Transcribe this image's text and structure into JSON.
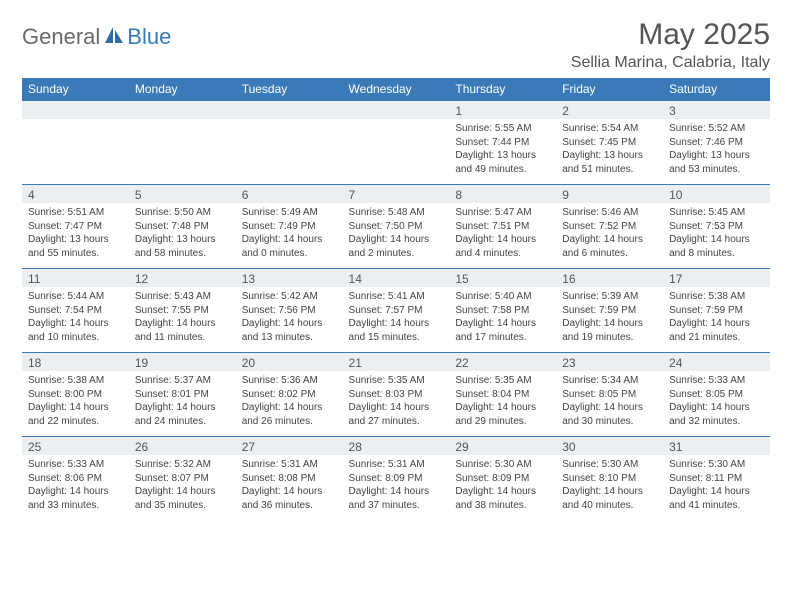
{
  "logo": {
    "part1": "General",
    "part2": "Blue"
  },
  "title": "May 2025",
  "location": "Sellia Marina, Calabria, Italy",
  "colors": {
    "header_bg": "#3a7ab8",
    "header_text": "#ffffff",
    "daynum_bg": "#eceff2",
    "border": "#3a7ab8",
    "body_text": "#444444",
    "title_text": "#555555"
  },
  "weekdays": [
    "Sunday",
    "Monday",
    "Tuesday",
    "Wednesday",
    "Thursday",
    "Friday",
    "Saturday"
  ],
  "weeks": [
    [
      {
        "day": "",
        "sunrise": "",
        "sunset": "",
        "daylight": ""
      },
      {
        "day": "",
        "sunrise": "",
        "sunset": "",
        "daylight": ""
      },
      {
        "day": "",
        "sunrise": "",
        "sunset": "",
        "daylight": ""
      },
      {
        "day": "",
        "sunrise": "",
        "sunset": "",
        "daylight": ""
      },
      {
        "day": "1",
        "sunrise": "Sunrise: 5:55 AM",
        "sunset": "Sunset: 7:44 PM",
        "daylight": "Daylight: 13 hours and 49 minutes."
      },
      {
        "day": "2",
        "sunrise": "Sunrise: 5:54 AM",
        "sunset": "Sunset: 7:45 PM",
        "daylight": "Daylight: 13 hours and 51 minutes."
      },
      {
        "day": "3",
        "sunrise": "Sunrise: 5:52 AM",
        "sunset": "Sunset: 7:46 PM",
        "daylight": "Daylight: 13 hours and 53 minutes."
      }
    ],
    [
      {
        "day": "4",
        "sunrise": "Sunrise: 5:51 AM",
        "sunset": "Sunset: 7:47 PM",
        "daylight": "Daylight: 13 hours and 55 minutes."
      },
      {
        "day": "5",
        "sunrise": "Sunrise: 5:50 AM",
        "sunset": "Sunset: 7:48 PM",
        "daylight": "Daylight: 13 hours and 58 minutes."
      },
      {
        "day": "6",
        "sunrise": "Sunrise: 5:49 AM",
        "sunset": "Sunset: 7:49 PM",
        "daylight": "Daylight: 14 hours and 0 minutes."
      },
      {
        "day": "7",
        "sunrise": "Sunrise: 5:48 AM",
        "sunset": "Sunset: 7:50 PM",
        "daylight": "Daylight: 14 hours and 2 minutes."
      },
      {
        "day": "8",
        "sunrise": "Sunrise: 5:47 AM",
        "sunset": "Sunset: 7:51 PM",
        "daylight": "Daylight: 14 hours and 4 minutes."
      },
      {
        "day": "9",
        "sunrise": "Sunrise: 5:46 AM",
        "sunset": "Sunset: 7:52 PM",
        "daylight": "Daylight: 14 hours and 6 minutes."
      },
      {
        "day": "10",
        "sunrise": "Sunrise: 5:45 AM",
        "sunset": "Sunset: 7:53 PM",
        "daylight": "Daylight: 14 hours and 8 minutes."
      }
    ],
    [
      {
        "day": "11",
        "sunrise": "Sunrise: 5:44 AM",
        "sunset": "Sunset: 7:54 PM",
        "daylight": "Daylight: 14 hours and 10 minutes."
      },
      {
        "day": "12",
        "sunrise": "Sunrise: 5:43 AM",
        "sunset": "Sunset: 7:55 PM",
        "daylight": "Daylight: 14 hours and 11 minutes."
      },
      {
        "day": "13",
        "sunrise": "Sunrise: 5:42 AM",
        "sunset": "Sunset: 7:56 PM",
        "daylight": "Daylight: 14 hours and 13 minutes."
      },
      {
        "day": "14",
        "sunrise": "Sunrise: 5:41 AM",
        "sunset": "Sunset: 7:57 PM",
        "daylight": "Daylight: 14 hours and 15 minutes."
      },
      {
        "day": "15",
        "sunrise": "Sunrise: 5:40 AM",
        "sunset": "Sunset: 7:58 PM",
        "daylight": "Daylight: 14 hours and 17 minutes."
      },
      {
        "day": "16",
        "sunrise": "Sunrise: 5:39 AM",
        "sunset": "Sunset: 7:59 PM",
        "daylight": "Daylight: 14 hours and 19 minutes."
      },
      {
        "day": "17",
        "sunrise": "Sunrise: 5:38 AM",
        "sunset": "Sunset: 7:59 PM",
        "daylight": "Daylight: 14 hours and 21 minutes."
      }
    ],
    [
      {
        "day": "18",
        "sunrise": "Sunrise: 5:38 AM",
        "sunset": "Sunset: 8:00 PM",
        "daylight": "Daylight: 14 hours and 22 minutes."
      },
      {
        "day": "19",
        "sunrise": "Sunrise: 5:37 AM",
        "sunset": "Sunset: 8:01 PM",
        "daylight": "Daylight: 14 hours and 24 minutes."
      },
      {
        "day": "20",
        "sunrise": "Sunrise: 5:36 AM",
        "sunset": "Sunset: 8:02 PM",
        "daylight": "Daylight: 14 hours and 26 minutes."
      },
      {
        "day": "21",
        "sunrise": "Sunrise: 5:35 AM",
        "sunset": "Sunset: 8:03 PM",
        "daylight": "Daylight: 14 hours and 27 minutes."
      },
      {
        "day": "22",
        "sunrise": "Sunrise: 5:35 AM",
        "sunset": "Sunset: 8:04 PM",
        "daylight": "Daylight: 14 hours and 29 minutes."
      },
      {
        "day": "23",
        "sunrise": "Sunrise: 5:34 AM",
        "sunset": "Sunset: 8:05 PM",
        "daylight": "Daylight: 14 hours and 30 minutes."
      },
      {
        "day": "24",
        "sunrise": "Sunrise: 5:33 AM",
        "sunset": "Sunset: 8:05 PM",
        "daylight": "Daylight: 14 hours and 32 minutes."
      }
    ],
    [
      {
        "day": "25",
        "sunrise": "Sunrise: 5:33 AM",
        "sunset": "Sunset: 8:06 PM",
        "daylight": "Daylight: 14 hours and 33 minutes."
      },
      {
        "day": "26",
        "sunrise": "Sunrise: 5:32 AM",
        "sunset": "Sunset: 8:07 PM",
        "daylight": "Daylight: 14 hours and 35 minutes."
      },
      {
        "day": "27",
        "sunrise": "Sunrise: 5:31 AM",
        "sunset": "Sunset: 8:08 PM",
        "daylight": "Daylight: 14 hours and 36 minutes."
      },
      {
        "day": "28",
        "sunrise": "Sunrise: 5:31 AM",
        "sunset": "Sunset: 8:09 PM",
        "daylight": "Daylight: 14 hours and 37 minutes."
      },
      {
        "day": "29",
        "sunrise": "Sunrise: 5:30 AM",
        "sunset": "Sunset: 8:09 PM",
        "daylight": "Daylight: 14 hours and 38 minutes."
      },
      {
        "day": "30",
        "sunrise": "Sunrise: 5:30 AM",
        "sunset": "Sunset: 8:10 PM",
        "daylight": "Daylight: 14 hours and 40 minutes."
      },
      {
        "day": "31",
        "sunrise": "Sunrise: 5:30 AM",
        "sunset": "Sunset: 8:11 PM",
        "daylight": "Daylight: 14 hours and 41 minutes."
      }
    ]
  ]
}
